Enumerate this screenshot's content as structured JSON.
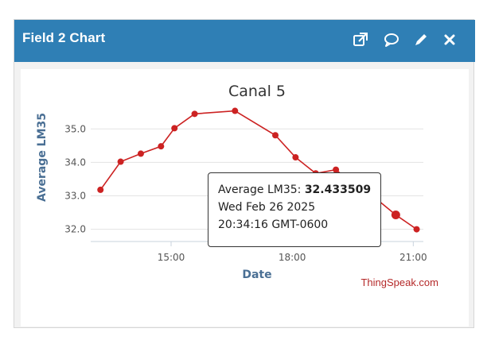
{
  "widget": {
    "title": "Field 2 Chart",
    "header_color": "#2f7fb5",
    "icons": [
      "external-link-icon",
      "comment-icon",
      "pencil-icon",
      "close-icon"
    ]
  },
  "tooltip": {
    "series_label": "Average LM35:",
    "value": "32.433509",
    "date_line": "Wed Feb 26 2025",
    "time_line": "20:34:16 GMT-0600"
  },
  "credit": "ThingSpeak.com",
  "chart_data": {
    "type": "line",
    "title": "Canal 5",
    "xlabel": "Date",
    "ylabel": "Average LM35",
    "x_ticks": [
      "15:00",
      "18:00",
      "21:00"
    ],
    "y_ticks": [
      "35.0",
      "34.0",
      "33.0",
      "32.0"
    ],
    "ylim": [
      31.8,
      35.6
    ],
    "xlim": [
      "13:10",
      "21:15"
    ],
    "grid": true,
    "line_color": "#cc2222",
    "series": [
      {
        "x": [
          "13:15",
          "13:45",
          "14:15",
          "14:45",
          "15:05",
          "15:35",
          "16:35",
          "17:35",
          "18:05",
          "18:35",
          "19:05",
          "19:35",
          "20:05",
          "20:34",
          "21:05"
        ],
        "values": [
          33.18,
          34.02,
          34.26,
          34.48,
          35.02,
          35.45,
          35.54,
          34.81,
          34.15,
          33.67,
          33.78,
          33.28,
          32.91,
          32.43,
          32.0
        ],
        "highlighted_index": 13
      }
    ]
  }
}
